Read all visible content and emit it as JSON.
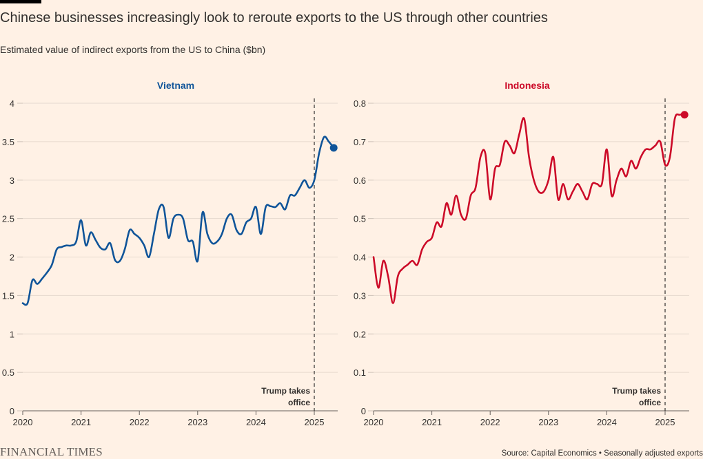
{
  "title": "Chinese businesses increasingly look to reroute exports to the US through other countries",
  "subtitle": "Estimated value of indirect exports from the US to China ($bn)",
  "brand": "FINANCIAL TIMES",
  "source": "Source: Capital Economics • Seasonally adjusted exports",
  "chart_data": [
    {
      "type": "line",
      "title": "Vietnam",
      "color": "#0F5499",
      "x_ticks": [
        "2020",
        "2021",
        "2022",
        "2023",
        "2024",
        "2025"
      ],
      "y_ticks": [
        "0",
        "0.5",
        "1",
        "1.5",
        "2",
        "2.5",
        "3",
        "3.5",
        "4"
      ],
      "ylim": [
        0,
        4
      ],
      "xlim": [
        "2020-01",
        "2025-05"
      ],
      "grid": true,
      "annotation": {
        "date": "2025-01",
        "lines": [
          "Trump takes",
          "office"
        ]
      },
      "x": [
        "2020-01",
        "2020-02",
        "2020-03",
        "2020-04",
        "2020-05",
        "2020-06",
        "2020-07",
        "2020-08",
        "2020-09",
        "2020-10",
        "2020-11",
        "2020-12",
        "2021-01",
        "2021-02",
        "2021-03",
        "2021-04",
        "2021-05",
        "2021-06",
        "2021-07",
        "2021-08",
        "2021-09",
        "2021-10",
        "2021-11",
        "2021-12",
        "2022-01",
        "2022-02",
        "2022-03",
        "2022-04",
        "2022-05",
        "2022-06",
        "2022-07",
        "2022-08",
        "2022-09",
        "2022-10",
        "2022-11",
        "2022-12",
        "2023-01",
        "2023-02",
        "2023-03",
        "2023-04",
        "2023-05",
        "2023-06",
        "2023-07",
        "2023-08",
        "2023-09",
        "2023-10",
        "2023-11",
        "2023-12",
        "2024-01",
        "2024-02",
        "2024-03",
        "2024-04",
        "2024-05",
        "2024-06",
        "2024-07",
        "2024-08",
        "2024-09",
        "2024-10",
        "2024-11",
        "2024-12",
        "2025-01",
        "2025-02",
        "2025-03",
        "2025-04",
        "2025-05"
      ],
      "series": [
        {
          "values": [
            1.4,
            1.4,
            1.7,
            1.65,
            1.72,
            1.8,
            1.9,
            2.1,
            2.13,
            2.15,
            2.15,
            2.2,
            2.48,
            2.15,
            2.32,
            2.22,
            2.12,
            2.1,
            2.18,
            1.96,
            1.95,
            2.1,
            2.35,
            2.3,
            2.25,
            2.15,
            2.0,
            2.3,
            2.62,
            2.65,
            2.25,
            2.5,
            2.55,
            2.5,
            2.22,
            2.2,
            1.95,
            2.58,
            2.3,
            2.18,
            2.2,
            2.3,
            2.5,
            2.55,
            2.35,
            2.3,
            2.45,
            2.5,
            2.65,
            2.3,
            2.65,
            2.66,
            2.65,
            2.7,
            2.62,
            2.8,
            2.8,
            2.9,
            3.0,
            2.9,
            3.0,
            3.35,
            3.56,
            3.5,
            3.42
          ]
        }
      ]
    },
    {
      "type": "line",
      "title": "Indonesia",
      "color": "#CC0A28",
      "x_ticks": [
        "2020",
        "2021",
        "2022",
        "2023",
        "2024",
        "2025"
      ],
      "y_ticks": [
        "0",
        "0.1",
        "0.2",
        "0.3",
        "0.4",
        "0.5",
        "0.6",
        "0.7",
        "0.8"
      ],
      "ylim": [
        0,
        0.8
      ],
      "xlim": [
        "2020-01",
        "2025-05"
      ],
      "grid": true,
      "annotation": {
        "date": "2025-01",
        "lines": [
          "Trump takes",
          "office"
        ]
      },
      "x": [
        "2020-01",
        "2020-02",
        "2020-03",
        "2020-04",
        "2020-05",
        "2020-06",
        "2020-07",
        "2020-08",
        "2020-09",
        "2020-10",
        "2020-11",
        "2020-12",
        "2021-01",
        "2021-02",
        "2021-03",
        "2021-04",
        "2021-05",
        "2021-06",
        "2021-07",
        "2021-08",
        "2021-09",
        "2021-10",
        "2021-11",
        "2021-12",
        "2022-01",
        "2022-02",
        "2022-03",
        "2022-04",
        "2022-05",
        "2022-06",
        "2022-07",
        "2022-08",
        "2022-09",
        "2022-10",
        "2022-11",
        "2022-12",
        "2023-01",
        "2023-02",
        "2023-03",
        "2023-04",
        "2023-05",
        "2023-06",
        "2023-07",
        "2023-08",
        "2023-09",
        "2023-10",
        "2023-11",
        "2023-12",
        "2024-01",
        "2024-02",
        "2024-03",
        "2024-04",
        "2024-05",
        "2024-06",
        "2024-07",
        "2024-08",
        "2024-09",
        "2024-10",
        "2024-11",
        "2024-12",
        "2025-01",
        "2025-02",
        "2025-03",
        "2025-04",
        "2025-05"
      ],
      "series": [
        {
          "values": [
            0.4,
            0.32,
            0.39,
            0.35,
            0.28,
            0.35,
            0.37,
            0.38,
            0.39,
            0.38,
            0.42,
            0.44,
            0.45,
            0.49,
            0.48,
            0.54,
            0.51,
            0.56,
            0.51,
            0.5,
            0.56,
            0.58,
            0.66,
            0.67,
            0.55,
            0.63,
            0.64,
            0.7,
            0.69,
            0.67,
            0.72,
            0.76,
            0.66,
            0.6,
            0.57,
            0.57,
            0.6,
            0.66,
            0.55,
            0.59,
            0.55,
            0.57,
            0.59,
            0.57,
            0.55,
            0.59,
            0.59,
            0.59,
            0.68,
            0.56,
            0.6,
            0.63,
            0.61,
            0.65,
            0.63,
            0.66,
            0.68,
            0.68,
            0.69,
            0.7,
            0.64,
            0.66,
            0.76,
            0.77,
            0.77
          ]
        }
      ]
    }
  ]
}
